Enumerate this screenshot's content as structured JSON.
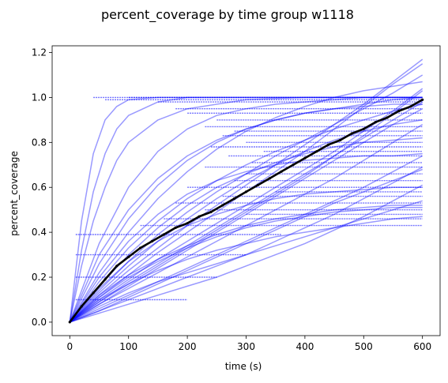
{
  "chart_data": {
    "type": "line",
    "title": "percent_coverage by time group w1118",
    "xlabel": "time (s)",
    "ylabel": "percent_coverage",
    "xlim": [
      -30,
      630
    ],
    "ylim": [
      -0.06,
      1.23
    ],
    "xticks": [
      0,
      100,
      200,
      300,
      400,
      500,
      600
    ],
    "xtick_labels": [
      "0",
      "100",
      "200",
      "300",
      "400",
      "500",
      "600"
    ],
    "yticks": [
      0.0,
      0.2,
      0.4,
      0.6,
      0.8,
      1.0,
      1.2
    ],
    "ytick_labels": [
      "0.0",
      "0.2",
      "0.4",
      "0.6",
      "0.8",
      "1.0",
      "1.2"
    ],
    "grid": false,
    "legend": "none",
    "colors": {
      "individual": "#0000ff",
      "mean": "#000000"
    },
    "series": [
      {
        "role": "mean",
        "x": [
          0,
          20,
          40,
          60,
          80,
          100,
          120,
          140,
          160,
          180,
          200,
          220,
          240,
          260,
          280,
          300,
          320,
          340,
          360,
          380,
          400,
          420,
          440,
          460,
          480,
          500,
          520,
          540,
          560,
          580,
          600
        ],
        "y": [
          0.0,
          0.07,
          0.13,
          0.19,
          0.25,
          0.29,
          0.33,
          0.36,
          0.39,
          0.42,
          0.44,
          0.47,
          0.49,
          0.52,
          0.55,
          0.58,
          0.61,
          0.64,
          0.67,
          0.7,
          0.73,
          0.76,
          0.79,
          0.81,
          0.84,
          0.86,
          0.89,
          0.91,
          0.94,
          0.96,
          0.99
        ]
      },
      {
        "role": "individual",
        "x": [
          0,
          20,
          40,
          60,
          80,
          100,
          150,
          200,
          300,
          400,
          500,
          600
        ],
        "y": [
          0.0,
          0.45,
          0.75,
          0.9,
          0.96,
          0.99,
          1.0,
          1.0,
          1.0,
          1.0,
          1.0,
          1.0
        ]
      },
      {
        "role": "individual",
        "x": [
          0,
          20,
          40,
          60,
          80,
          100,
          150,
          200,
          300,
          400,
          500,
          600
        ],
        "y": [
          0.0,
          0.32,
          0.58,
          0.75,
          0.86,
          0.92,
          0.98,
          1.0,
          1.0,
          1.0,
          1.0,
          1.0
        ]
      },
      {
        "role": "individual",
        "x": [
          0,
          20,
          40,
          60,
          80,
          100,
          150,
          200,
          300,
          400,
          500,
          600
        ],
        "y": [
          0.0,
          0.25,
          0.45,
          0.6,
          0.72,
          0.8,
          0.9,
          0.95,
          0.99,
          1.0,
          1.0,
          1.0
        ]
      },
      {
        "role": "individual",
        "x": [
          0,
          50,
          100,
          150,
          200,
          250,
          300,
          350,
          400,
          450,
          500,
          550,
          600
        ],
        "y": [
          0.0,
          0.3,
          0.5,
          0.64,
          0.74,
          0.81,
          0.86,
          0.9,
          0.93,
          0.95,
          0.97,
          0.99,
          1.0
        ]
      },
      {
        "role": "individual",
        "x": [
          0,
          50,
          100,
          150,
          200,
          250,
          300,
          350,
          400,
          450,
          500,
          550,
          600
        ],
        "y": [
          0.0,
          0.18,
          0.33,
          0.45,
          0.55,
          0.63,
          0.7,
          0.76,
          0.81,
          0.86,
          0.9,
          0.94,
          0.97
        ]
      },
      {
        "role": "individual",
        "x": [
          0,
          50,
          100,
          150,
          200,
          250,
          300,
          350,
          400,
          450,
          500,
          550,
          600
        ],
        "y": [
          0.0,
          0.22,
          0.4,
          0.55,
          0.67,
          0.77,
          0.85,
          0.91,
          0.96,
          1.0,
          1.03,
          1.05,
          1.07
        ]
      },
      {
        "role": "individual",
        "x": [
          0,
          50,
          100,
          150,
          200,
          250,
          300,
          350,
          400,
          450,
          500,
          550,
          600
        ],
        "y": [
          0.0,
          0.14,
          0.27,
          0.39,
          0.49,
          0.58,
          0.66,
          0.74,
          0.81,
          0.88,
          0.95,
          1.02,
          1.1
        ]
      },
      {
        "role": "individual",
        "x": [
          0,
          50,
          100,
          150,
          200,
          250,
          300,
          350,
          400,
          450,
          500,
          550,
          600
        ],
        "y": [
          0.0,
          0.12,
          0.23,
          0.33,
          0.43,
          0.52,
          0.61,
          0.7,
          0.79,
          0.88,
          0.97,
          1.07,
          1.17
        ]
      },
      {
        "role": "individual",
        "x": [
          0,
          50,
          100,
          150,
          200,
          250,
          300,
          350,
          400,
          450,
          500,
          550,
          600
        ],
        "y": [
          0.0,
          0.11,
          0.21,
          0.31,
          0.4,
          0.49,
          0.58,
          0.67,
          0.76,
          0.86,
          0.96,
          1.06,
          1.15
        ]
      },
      {
        "role": "individual",
        "x": [
          0,
          50,
          100,
          150,
          200,
          250,
          300,
          350,
          400,
          450,
          500,
          550,
          600
        ],
        "y": [
          0.0,
          0.09,
          0.17,
          0.25,
          0.33,
          0.41,
          0.49,
          0.57,
          0.65,
          0.74,
          0.83,
          0.93,
          1.03
        ]
      },
      {
        "role": "individual",
        "x": [
          0,
          50,
          100,
          150,
          200,
          250,
          300,
          350,
          400,
          450,
          500,
          550,
          600
        ],
        "y": [
          0.0,
          0.1,
          0.19,
          0.28,
          0.36,
          0.44,
          0.52,
          0.6,
          0.68,
          0.76,
          0.85,
          0.94,
          1.04
        ]
      },
      {
        "role": "individual",
        "x": [
          0,
          50,
          100,
          150,
          200,
          250,
          300,
          350,
          400,
          450,
          500,
          550,
          600
        ],
        "y": [
          0.0,
          0.08,
          0.15,
          0.22,
          0.29,
          0.36,
          0.43,
          0.5,
          0.57,
          0.64,
          0.72,
          0.8,
          0.88
        ]
      },
      {
        "role": "individual",
        "x": [
          0,
          50,
          100,
          150,
          200,
          250,
          300,
          350,
          400,
          450,
          500,
          550,
          600
        ],
        "y": [
          0.0,
          0.06,
          0.12,
          0.18,
          0.24,
          0.3,
          0.36,
          0.42,
          0.48,
          0.54,
          0.6,
          0.67,
          0.74
        ]
      },
      {
        "role": "individual",
        "x": [
          0,
          50,
          100,
          150,
          200,
          250,
          300,
          350,
          400,
          450,
          500,
          550,
          600
        ],
        "y": [
          0.0,
          0.05,
          0.1,
          0.15,
          0.2,
          0.25,
          0.3,
          0.36,
          0.42,
          0.48,
          0.55,
          0.62,
          0.69
        ]
      },
      {
        "role": "individual",
        "x": [
          0,
          50,
          100,
          150,
          200,
          250,
          300,
          350,
          400,
          450,
          500,
          550,
          600
        ],
        "y": [
          0.0,
          0.04,
          0.08,
          0.12,
          0.16,
          0.2,
          0.25,
          0.3,
          0.35,
          0.41,
          0.47,
          0.54,
          0.61
        ]
      },
      {
        "role": "individual",
        "x": [
          0,
          50,
          100,
          150,
          200,
          250,
          300,
          350,
          400,
          450,
          500,
          550,
          600
        ],
        "y": [
          0.0,
          0.13,
          0.25,
          0.36,
          0.46,
          0.55,
          0.63,
          0.7,
          0.76,
          0.81,
          0.85,
          0.88,
          0.9
        ]
      },
      {
        "role": "individual",
        "x": [
          0,
          50,
          100,
          150,
          200,
          250,
          300,
          350,
          400,
          450,
          500,
          550,
          600
        ],
        "y": [
          0.0,
          0.16,
          0.3,
          0.42,
          0.52,
          0.6,
          0.66,
          0.71,
          0.75,
          0.78,
          0.8,
          0.81,
          0.82
        ]
      },
      {
        "role": "individual",
        "x": [
          0,
          50,
          100,
          150,
          200,
          250,
          300,
          350,
          400,
          450,
          500,
          550,
          600
        ],
        "y": [
          0.0,
          0.2,
          0.36,
          0.48,
          0.57,
          0.63,
          0.67,
          0.7,
          0.72,
          0.73,
          0.74,
          0.74,
          0.75
        ]
      },
      {
        "role": "individual",
        "x": [
          0,
          50,
          100,
          150,
          200,
          250,
          300,
          350,
          400,
          450,
          500,
          550,
          600
        ],
        "y": [
          0.0,
          0.15,
          0.27,
          0.36,
          0.43,
          0.48,
          0.52,
          0.55,
          0.57,
          0.58,
          0.59,
          0.6,
          0.6
        ]
      },
      {
        "role": "individual",
        "x": [
          0,
          50,
          100,
          150,
          200,
          250,
          300,
          350,
          400,
          450,
          500,
          550,
          600
        ],
        "y": [
          0.0,
          0.12,
          0.21,
          0.28,
          0.34,
          0.39,
          0.43,
          0.46,
          0.48,
          0.5,
          0.51,
          0.52,
          0.52
        ]
      },
      {
        "role": "individual",
        "x": [
          0,
          50,
          100,
          150,
          200,
          250,
          300,
          350,
          400,
          450,
          500,
          550,
          600
        ],
        "y": [
          0.0,
          0.1,
          0.17,
          0.23,
          0.28,
          0.32,
          0.35,
          0.38,
          0.4,
          0.42,
          0.44,
          0.46,
          0.47
        ]
      },
      {
        "role": "individual",
        "x": [
          0,
          50,
          100,
          150,
          200,
          250,
          300,
          350,
          400,
          450,
          500,
          550,
          600
        ],
        "y": [
          0.0,
          0.07,
          0.13,
          0.18,
          0.22,
          0.26,
          0.3,
          0.34,
          0.38,
          0.42,
          0.46,
          0.5,
          0.54
        ]
      },
      {
        "role": "individual",
        "x": [
          0,
          50,
          100,
          150,
          200,
          250,
          300,
          350,
          400,
          450,
          500,
          550,
          600
        ],
        "y": [
          0.0,
          0.11,
          0.2,
          0.27,
          0.33,
          0.38,
          0.42,
          0.45,
          0.47,
          0.49,
          0.5,
          0.51,
          0.51
        ]
      },
      {
        "role": "individual",
        "x": [
          0,
          50,
          100,
          150,
          200,
          250,
          300,
          350,
          400,
          450,
          500,
          550,
          600
        ],
        "y": [
          0.0,
          0.09,
          0.18,
          0.26,
          0.34,
          0.42,
          0.5,
          0.58,
          0.66,
          0.74,
          0.82,
          0.9,
          0.98
        ]
      },
      {
        "role": "individual",
        "x": [
          0,
          50,
          100,
          150,
          200,
          250,
          300,
          350,
          400,
          450,
          500,
          550,
          600
        ],
        "y": [
          0.0,
          0.26,
          0.46,
          0.61,
          0.72,
          0.8,
          0.86,
          0.9,
          0.93,
          0.95,
          0.96,
          0.97,
          0.97
        ]
      },
      {
        "role": "individual",
        "x": [
          0,
          50,
          100,
          150,
          200,
          250,
          300,
          350,
          400,
          450,
          500,
          550,
          600
        ],
        "y": [
          0.0,
          0.35,
          0.6,
          0.76,
          0.86,
          0.92,
          0.95,
          0.97,
          0.98,
          0.99,
          1.0,
          1.0,
          1.0
        ]
      },
      {
        "role": "individual",
        "x": [
          0,
          50,
          100,
          150,
          200,
          250,
          300,
          350,
          400,
          450,
          500,
          550,
          600
        ],
        "y": [
          0.0,
          0.05,
          0.11,
          0.17,
          0.23,
          0.29,
          0.35,
          0.41,
          0.47,
          0.53,
          0.58,
          0.63,
          0.68
        ]
      },
      {
        "role": "individual",
        "x": [
          0,
          50,
          100,
          150,
          200,
          250,
          300,
          350,
          400,
          450,
          500,
          550,
          600
        ],
        "y": [
          0.0,
          0.08,
          0.16,
          0.24,
          0.32,
          0.4,
          0.48,
          0.56,
          0.64,
          0.72,
          0.8,
          0.88,
          0.95
        ]
      }
    ],
    "plateaus": [
      {
        "x": [
          40,
          600
        ],
        "y": 1.0
      },
      {
        "x": [
          100,
          600
        ],
        "y": 1.0
      },
      {
        "x": [
          60,
          600
        ],
        "y": 0.99
      },
      {
        "x": [
          150,
          600
        ],
        "y": 0.98
      },
      {
        "x": [
          180,
          600
        ],
        "y": 0.95
      },
      {
        "x": [
          200,
          600
        ],
        "y": 0.93
      },
      {
        "x": [
          250,
          600
        ],
        "y": 0.9
      },
      {
        "x": [
          230,
          600
        ],
        "y": 0.87
      },
      {
        "x": [
          280,
          600
        ],
        "y": 0.85
      },
      {
        "x": [
          260,
          600
        ],
        "y": 0.83
      },
      {
        "x": [
          300,
          600
        ],
        "y": 0.8
      },
      {
        "x": [
          240,
          600
        ],
        "y": 0.78
      },
      {
        "x": [
          330,
          600
        ],
        "y": 0.76
      },
      {
        "x": [
          270,
          600
        ],
        "y": 0.74
      },
      {
        "x": [
          310,
          600
        ],
        "y": 0.71
      },
      {
        "x": [
          230,
          600
        ],
        "y": 0.69
      },
      {
        "x": [
          300,
          600
        ],
        "y": 0.66
      },
      {
        "x": [
          280,
          600
        ],
        "y": 0.63
      },
      {
        "x": [
          200,
          600
        ],
        "y": 0.6
      },
      {
        "x": [
          350,
          600
        ],
        "y": 0.58
      },
      {
        "x": [
          260,
          600
        ],
        "y": 0.56
      },
      {
        "x": [
          180,
          600
        ],
        "y": 0.53
      },
      {
        "x": [
          230,
          600
        ],
        "y": 0.5
      },
      {
        "x": [
          300,
          600
        ],
        "y": 0.48
      },
      {
        "x": [
          160,
          600
        ],
        "y": 0.46
      },
      {
        "x": [
          120,
          600
        ],
        "y": 0.43
      },
      {
        "x": [
          10,
          360
        ],
        "y": 0.39
      },
      {
        "x": [
          10,
          300
        ],
        "y": 0.3
      },
      {
        "x": [
          10,
          250
        ],
        "y": 0.2
      },
      {
        "x": [
          10,
          200
        ],
        "y": 0.1
      }
    ]
  }
}
